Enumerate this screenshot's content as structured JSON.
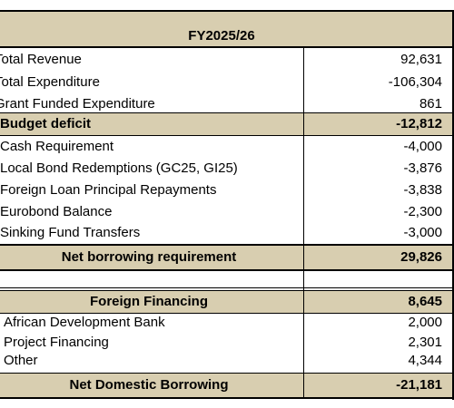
{
  "header": {
    "title": "FY2025/26"
  },
  "table": {
    "rows": [
      {
        "label": "Total Revenue",
        "value": "92,631"
      },
      {
        "label": "Total Expenditure",
        "value": "-106,304"
      },
      {
        "label": "Grant Funded Expenditure",
        "value": "861"
      },
      {
        "label": "Budget deficit",
        "value": "-12,812"
      },
      {
        "label": "Cash Requirement",
        "value": "-4,000"
      },
      {
        "label": "Local Bond Redemptions (GC25, GI25)",
        "value": "-3,876"
      },
      {
        "label": "Foreign Loan Principal Repayments",
        "value": "-3,838"
      },
      {
        "label": "Eurobond Balance",
        "value": "-2,300"
      },
      {
        "label": "Sinking Fund Transfers",
        "value": "-3,000"
      },
      {
        "label": "Net borrowing requirement",
        "value": "29,826"
      },
      {
        "label": "Foreign Financing",
        "value": "8,645"
      },
      {
        "label": "African Development Bank",
        "value": "2,000"
      },
      {
        "label": "Project Financing",
        "value": "2,301"
      },
      {
        "label": "Other",
        "value": "4,344"
      },
      {
        "label": "Net Domestic Borrowing",
        "value": "-21,181"
      }
    ]
  },
  "colors": {
    "shade": "#d8ceb0",
    "border": "#000000"
  }
}
